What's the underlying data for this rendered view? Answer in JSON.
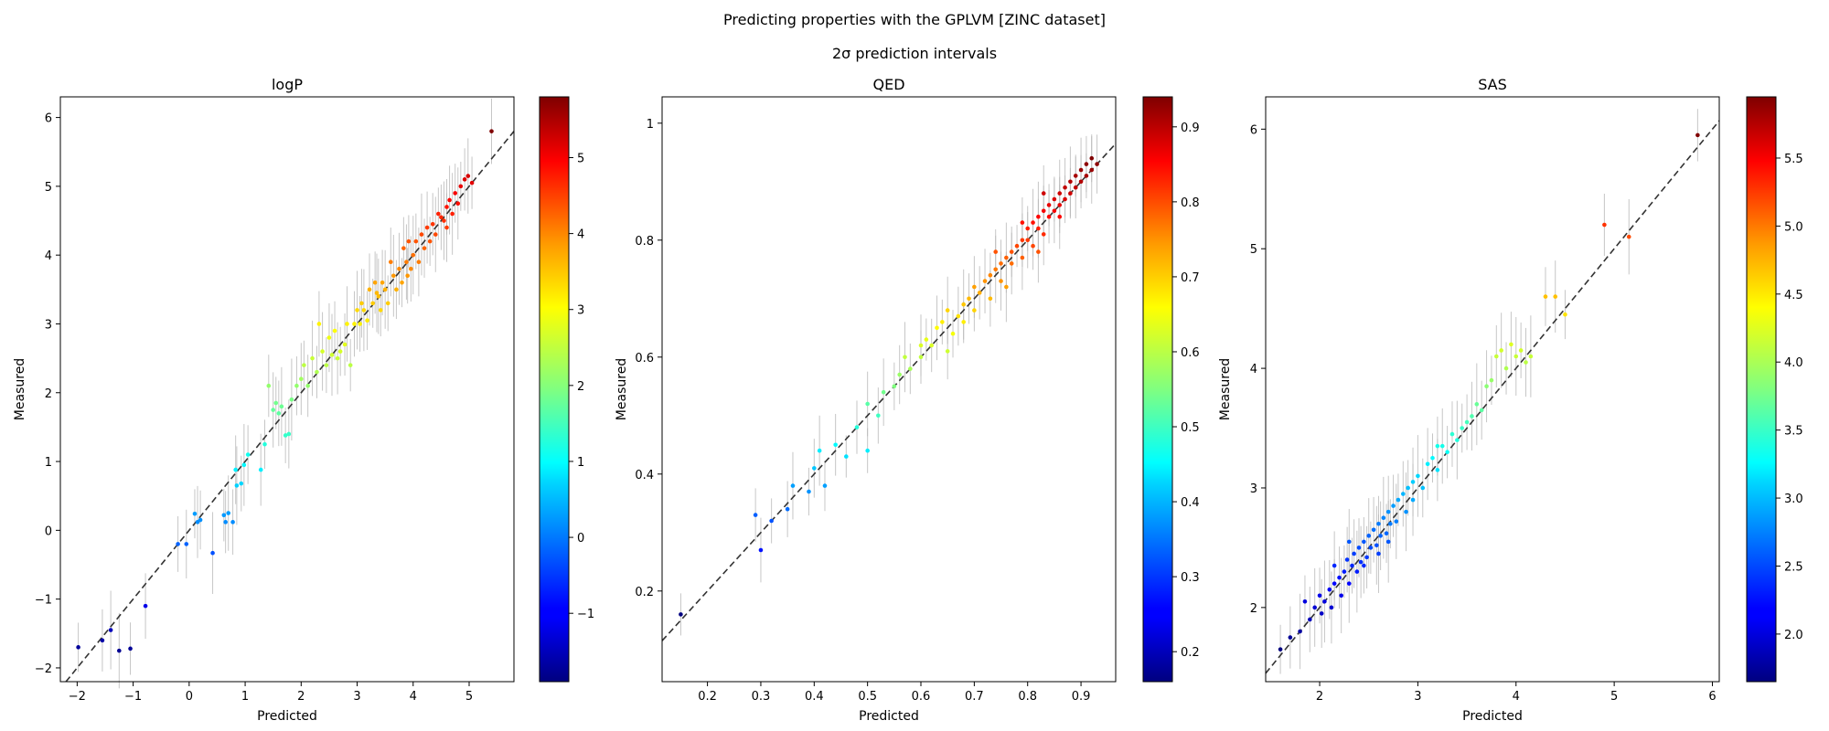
{
  "figure": {
    "suptitle": "Predicting properties with the GPLVM [ZINC dataset]",
    "subtitle": "2σ prediction intervals"
  },
  "chart_data": [
    {
      "type": "scatter",
      "title": "logP",
      "xlabel": "Predicted",
      "ylabel": "Measured",
      "xlim": [
        -2.3,
        5.8
      ],
      "ylim": [
        -2.2,
        6.3
      ],
      "xticks": [
        -2,
        -1,
        0,
        1,
        2,
        3,
        4,
        5
      ],
      "yticks": [
        -2,
        -1,
        0,
        1,
        2,
        3,
        4,
        5,
        6
      ],
      "colorbar": {
        "min": -1.9,
        "max": 5.8,
        "ticks": [
          -1,
          0,
          1,
          2,
          3,
          4,
          5
        ],
        "colormap": "jet"
      },
      "reference_line": "y = x",
      "error_bars": "2σ",
      "points": [
        [
          -1.98,
          -1.7
        ],
        [
          -1.55,
          -1.6
        ],
        [
          -1.25,
          -1.75
        ],
        [
          -1.05,
          -1.72
        ],
        [
          -0.78,
          -1.1
        ],
        [
          -1.4,
          -1.45
        ],
        [
          -0.2,
          -0.2
        ],
        [
          -0.05,
          -0.2
        ],
        [
          0.42,
          -0.33
        ],
        [
          0.2,
          0.15
        ],
        [
          0.15,
          0.12
        ],
        [
          0.1,
          0.24
        ],
        [
          0.65,
          0.12
        ],
        [
          0.7,
          0.25
        ],
        [
          0.62,
          0.22
        ],
        [
          0.78,
          0.12
        ],
        [
          0.85,
          0.65
        ],
        [
          0.93,
          0.68
        ],
        [
          0.83,
          0.88
        ],
        [
          0.98,
          0.95
        ],
        [
          1.05,
          1.1
        ],
        [
          1.28,
          0.88
        ],
        [
          1.35,
          1.25
        ],
        [
          1.42,
          2.1
        ],
        [
          1.5,
          1.75
        ],
        [
          1.55,
          1.85
        ],
        [
          1.6,
          1.7
        ],
        [
          1.65,
          1.8
        ],
        [
          1.72,
          1.38
        ],
        [
          1.78,
          1.4
        ],
        [
          1.83,
          1.9
        ],
        [
          1.92,
          2.1
        ],
        [
          2.0,
          2.2
        ],
        [
          2.05,
          2.4
        ],
        [
          2.12,
          2.1
        ],
        [
          2.2,
          2.5
        ],
        [
          2.28,
          2.3
        ],
        [
          2.32,
          3.0
        ],
        [
          2.38,
          2.6
        ],
        [
          2.45,
          2.4
        ],
        [
          2.5,
          2.8
        ],
        [
          2.55,
          2.55
        ],
        [
          2.6,
          2.9
        ],
        [
          2.65,
          2.5
        ],
        [
          2.7,
          2.6
        ],
        [
          2.78,
          2.7
        ],
        [
          2.82,
          3.0
        ],
        [
          2.88,
          2.4
        ],
        [
          2.95,
          3.0
        ],
        [
          3.0,
          3.2
        ],
        [
          3.05,
          3.0
        ],
        [
          3.08,
          3.3
        ],
        [
          3.12,
          3.2
        ],
        [
          3.18,
          3.05
        ],
        [
          3.22,
          3.5
        ],
        [
          3.28,
          3.3
        ],
        [
          3.32,
          3.6
        ],
        [
          3.38,
          3.4
        ],
        [
          3.42,
          3.2
        ],
        [
          3.45,
          3.6
        ],
        [
          3.5,
          3.5
        ],
        [
          3.55,
          3.3
        ],
        [
          3.6,
          3.9
        ],
        [
          3.65,
          3.7
        ],
        [
          3.7,
          3.5
        ],
        [
          3.75,
          3.8
        ],
        [
          3.8,
          3.6
        ],
        [
          3.83,
          4.1
        ],
        [
          3.88,
          3.9
        ],
        [
          3.92,
          4.2
        ],
        [
          3.96,
          3.8
        ],
        [
          4.0,
          4.0
        ],
        [
          4.05,
          4.2
        ],
        [
          4.1,
          3.9
        ],
        [
          4.15,
          4.3
        ],
        [
          4.2,
          4.1
        ],
        [
          4.25,
          4.4
        ],
        [
          4.3,
          4.2
        ],
        [
          4.35,
          4.45
        ],
        [
          4.4,
          4.3
        ],
        [
          4.45,
          4.6
        ],
        [
          4.5,
          4.55
        ],
        [
          4.55,
          4.5
        ],
        [
          4.6,
          4.7
        ],
        [
          4.65,
          4.8
        ],
        [
          4.7,
          4.6
        ],
        [
          4.75,
          4.9
        ],
        [
          4.8,
          4.75
        ],
        [
          4.85,
          5.0
        ],
        [
          4.92,
          5.1
        ],
        [
          4.98,
          5.15
        ],
        [
          5.05,
          5.05
        ],
        [
          5.4,
          5.8
        ],
        [
          3.35,
          3.45
        ],
        [
          3.9,
          3.7
        ],
        [
          4.6,
          4.4
        ]
      ]
    },
    {
      "type": "scatter",
      "title": "QED",
      "xlabel": "Predicted",
      "ylabel": "Measured",
      "xlim": [
        0.115,
        0.965
      ],
      "ylim": [
        0.045,
        1.045
      ],
      "xticks": [
        0.2,
        0.3,
        0.4,
        0.5,
        0.6,
        0.7,
        0.8,
        0.9
      ],
      "yticks": [
        0.2,
        0.4,
        0.6,
        0.8,
        1.0
      ],
      "colorbar": {
        "min": 0.16,
        "max": 0.94,
        "ticks": [
          0.2,
          0.3,
          0.4,
          0.5,
          0.6,
          0.7,
          0.8,
          0.9
        ],
        "colormap": "jet"
      },
      "reference_line": "y = x",
      "error_bars": "2σ",
      "points": [
        [
          0.15,
          0.16
        ],
        [
          0.29,
          0.33
        ],
        [
          0.3,
          0.27
        ],
        [
          0.32,
          0.32
        ],
        [
          0.35,
          0.34
        ],
        [
          0.36,
          0.38
        ],
        [
          0.39,
          0.37
        ],
        [
          0.4,
          0.41
        ],
        [
          0.41,
          0.44
        ],
        [
          0.42,
          0.38
        ],
        [
          0.44,
          0.45
        ],
        [
          0.46,
          0.43
        ],
        [
          0.48,
          0.48
        ],
        [
          0.5,
          0.52
        ],
        [
          0.5,
          0.44
        ],
        [
          0.52,
          0.5
        ],
        [
          0.53,
          0.54
        ],
        [
          0.55,
          0.55
        ],
        [
          0.56,
          0.57
        ],
        [
          0.57,
          0.6
        ],
        [
          0.58,
          0.58
        ],
        [
          0.6,
          0.62
        ],
        [
          0.61,
          0.63
        ],
        [
          0.62,
          0.62
        ],
        [
          0.63,
          0.65
        ],
        [
          0.64,
          0.66
        ],
        [
          0.65,
          0.61
        ],
        [
          0.65,
          0.68
        ],
        [
          0.66,
          0.64
        ],
        [
          0.67,
          0.67
        ],
        [
          0.68,
          0.69
        ],
        [
          0.69,
          0.7
        ],
        [
          0.7,
          0.72
        ],
        [
          0.7,
          0.68
        ],
        [
          0.71,
          0.71
        ],
        [
          0.72,
          0.73
        ],
        [
          0.73,
          0.74
        ],
        [
          0.73,
          0.7
        ],
        [
          0.74,
          0.75
        ],
        [
          0.75,
          0.76
        ],
        [
          0.75,
          0.73
        ],
        [
          0.76,
          0.77
        ],
        [
          0.77,
          0.78
        ],
        [
          0.77,
          0.76
        ],
        [
          0.78,
          0.79
        ],
        [
          0.79,
          0.8
        ],
        [
          0.79,
          0.77
        ],
        [
          0.8,
          0.82
        ],
        [
          0.8,
          0.8
        ],
        [
          0.81,
          0.83
        ],
        [
          0.81,
          0.79
        ],
        [
          0.82,
          0.82
        ],
        [
          0.82,
          0.84
        ],
        [
          0.83,
          0.85
        ],
        [
          0.83,
          0.81
        ],
        [
          0.84,
          0.86
        ],
        [
          0.84,
          0.84
        ],
        [
          0.85,
          0.85
        ],
        [
          0.85,
          0.87
        ],
        [
          0.86,
          0.86
        ],
        [
          0.86,
          0.88
        ],
        [
          0.87,
          0.87
        ],
        [
          0.87,
          0.89
        ],
        [
          0.88,
          0.9
        ],
        [
          0.88,
          0.88
        ],
        [
          0.89,
          0.89
        ],
        [
          0.89,
          0.91
        ],
        [
          0.9,
          0.9
        ],
        [
          0.9,
          0.92
        ],
        [
          0.91,
          0.91
        ],
        [
          0.91,
          0.93
        ],
        [
          0.92,
          0.92
        ],
        [
          0.92,
          0.94
        ],
        [
          0.93,
          0.93
        ],
        [
          0.76,
          0.72
        ],
        [
          0.79,
          0.83
        ],
        [
          0.82,
          0.78
        ],
        [
          0.68,
          0.66
        ],
        [
          0.6,
          0.6
        ],
        [
          0.86,
          0.84
        ],
        [
          0.74,
          0.78
        ],
        [
          0.83,
          0.88
        ]
      ]
    },
    {
      "type": "scatter",
      "title": "SAS",
      "xlabel": "Predicted",
      "ylabel": "Measured",
      "xlim": [
        1.45,
        6.07
      ],
      "ylim": [
        1.38,
        6.27
      ],
      "xticks": [
        2,
        3,
        4,
        5,
        6
      ],
      "yticks": [
        2,
        3,
        4,
        5,
        6
      ],
      "colorbar": {
        "min": 1.65,
        "max": 5.95,
        "ticks": [
          2.0,
          2.5,
          3.0,
          3.5,
          4.0,
          4.5,
          5.0,
          5.5
        ],
        "colormap": "jet"
      },
      "reference_line": "y = x",
      "error_bars": "2σ",
      "points": [
        [
          1.6,
          1.65
        ],
        [
          1.7,
          1.75
        ],
        [
          1.8,
          1.8
        ],
        [
          1.85,
          2.05
        ],
        [
          1.9,
          1.9
        ],
        [
          1.95,
          2.0
        ],
        [
          2.0,
          2.1
        ],
        [
          2.02,
          1.95
        ],
        [
          2.05,
          2.05
        ],
        [
          2.1,
          2.15
        ],
        [
          2.12,
          2.0
        ],
        [
          2.15,
          2.2
        ],
        [
          2.2,
          2.25
        ],
        [
          2.22,
          2.1
        ],
        [
          2.25,
          2.3
        ],
        [
          2.28,
          2.4
        ],
        [
          2.3,
          2.2
        ],
        [
          2.33,
          2.35
        ],
        [
          2.35,
          2.45
        ],
        [
          2.38,
          2.3
        ],
        [
          2.4,
          2.5
        ],
        [
          2.42,
          2.38
        ],
        [
          2.45,
          2.55
        ],
        [
          2.48,
          2.42
        ],
        [
          2.5,
          2.6
        ],
        [
          2.52,
          2.5
        ],
        [
          2.55,
          2.65
        ],
        [
          2.58,
          2.52
        ],
        [
          2.6,
          2.7
        ],
        [
          2.62,
          2.6
        ],
        [
          2.65,
          2.75
        ],
        [
          2.68,
          2.62
        ],
        [
          2.7,
          2.8
        ],
        [
          2.72,
          2.7
        ],
        [
          2.75,
          2.85
        ],
        [
          2.78,
          2.72
        ],
        [
          2.8,
          2.9
        ],
        [
          2.85,
          2.95
        ],
        [
          2.88,
          2.8
        ],
        [
          2.9,
          3.0
        ],
        [
          2.95,
          3.05
        ],
        [
          3.0,
          3.1
        ],
        [
          3.05,
          3.0
        ],
        [
          3.1,
          3.2
        ],
        [
          3.15,
          3.25
        ],
        [
          3.2,
          3.15
        ],
        [
          3.25,
          3.35
        ],
        [
          3.3,
          3.3
        ],
        [
          3.35,
          3.45
        ],
        [
          3.4,
          3.4
        ],
        [
          3.5,
          3.55
        ],
        [
          3.55,
          3.6
        ],
        [
          3.6,
          3.7
        ],
        [
          3.65,
          3.65
        ],
        [
          3.7,
          3.85
        ],
        [
          3.75,
          3.9
        ],
        [
          3.8,
          4.1
        ],
        [
          3.85,
          4.15
        ],
        [
          3.9,
          4.0
        ],
        [
          3.95,
          4.2
        ],
        [
          4.0,
          4.1
        ],
        [
          4.05,
          4.15
        ],
        [
          4.1,
          4.05
        ],
        [
          4.15,
          4.1
        ],
        [
          4.3,
          4.6
        ],
        [
          4.4,
          4.6
        ],
        [
          4.5,
          4.45
        ],
        [
          4.9,
          5.2
        ],
        [
          5.15,
          5.1
        ],
        [
          5.85,
          5.95
        ],
        [
          2.3,
          2.55
        ],
        [
          2.6,
          2.45
        ],
        [
          2.45,
          2.35
        ],
        [
          2.15,
          2.35
        ],
        [
          2.7,
          2.55
        ],
        [
          3.2,
          3.35
        ],
        [
          2.95,
          2.9
        ],
        [
          3.45,
          3.5
        ]
      ]
    }
  ]
}
